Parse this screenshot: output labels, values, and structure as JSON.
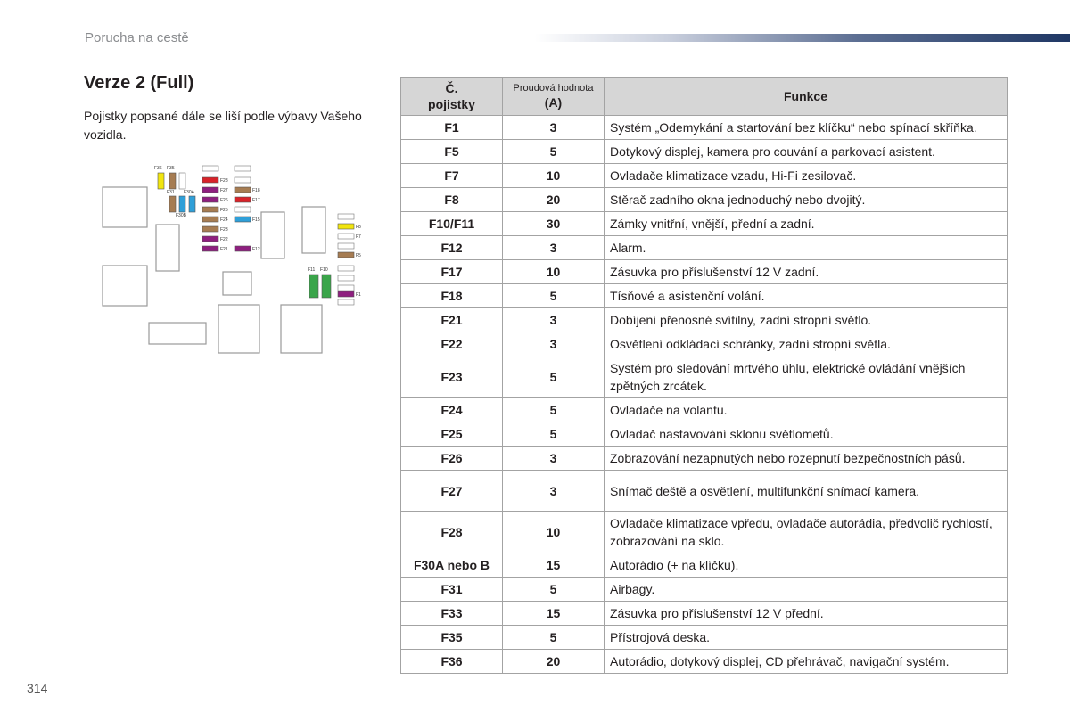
{
  "header": {
    "title": "Porucha na cestě"
  },
  "section": {
    "title": "Verze 2 (Full)",
    "intro": "Pojistky popsané dále se liší podle výbavy Vašeho vozidla."
  },
  "page_number": "314",
  "diagram": {
    "labels": {
      "F36": "F36",
      "F35": "F35",
      "F31": "F31",
      "F30A": "F30A",
      "F30B": "F30B",
      "F28": "F28",
      "F27": "F27",
      "F26": "F26",
      "F25": "F25",
      "F24": "F24",
      "F23": "F23",
      "F22": "F22",
      "F21": "F21",
      "F18": "F18",
      "F17": "F17",
      "F15": "F15",
      "F12": "F12",
      "F8": "F8",
      "F7": "F7",
      "F5": "F5",
      "F11": "F11",
      "F10": "F10",
      "F1": "F1"
    },
    "colors": {
      "yellow": "#f1e50f",
      "brown": "#a67c52",
      "blue": "#2f9fd8",
      "purple": "#8e1f7f",
      "red": "#d8232a",
      "green": "#3aa54a"
    }
  },
  "table": {
    "headers": {
      "col1_line1": "Č.",
      "col1_line2": "pojistky",
      "col2_line1": "Proudová hodnota",
      "col2_line2": "(A)",
      "col3": "Funkce"
    },
    "rows": [
      {
        "fuse": "F1",
        "amps": "3",
        "function": "Systém „Odemykání a startování bez klíčku“ nebo spínací skříňka."
      },
      {
        "fuse": "F5",
        "amps": "5",
        "function": "Dotykový displej, kamera pro couvání a parkovací asistent."
      },
      {
        "fuse": "F7",
        "amps": "10",
        "function": "Ovladače klimatizace vzadu, Hi-Fi zesilovač."
      },
      {
        "fuse": "F8",
        "amps": "20",
        "function": "Stěrač zadního okna jednoduchý nebo dvojitý."
      },
      {
        "fuse": "F10/F11",
        "amps": "30",
        "function": "Zámky vnitřní, vnější, přední a zadní."
      },
      {
        "fuse": "F12",
        "amps": "3",
        "function": "Alarm."
      },
      {
        "fuse": "F17",
        "amps": "10",
        "function": "Zásuvka pro příslušenství 12 V zadní."
      },
      {
        "fuse": "F18",
        "amps": "5",
        "function": "Tísňové a asistenční volání."
      },
      {
        "fuse": "F21",
        "amps": "3",
        "function": "Dobíjení přenosné svítilny, zadní stropní světlo."
      },
      {
        "fuse": "F22",
        "amps": "3",
        "function": "Osvětlení odkládací schránky, zadní stropní světla."
      },
      {
        "fuse": "F23",
        "amps": "5",
        "function": "Systém pro sledování mrtvého úhlu, elektrické ovládání vnějších zpětných zrcátek."
      },
      {
        "fuse": "F24",
        "amps": "5",
        "function": "Ovladače na volantu."
      },
      {
        "fuse": "F25",
        "amps": "5",
        "function": "Ovladač nastavování sklonu světlometů."
      },
      {
        "fuse": "F26",
        "amps": "3",
        "function": "Zobrazování nezapnutých nebo rozepnutí bezpečnostních pásů."
      },
      {
        "fuse": "F27",
        "amps": "3",
        "function": "Snímač deště a osvětlení, multifunkční snímací kamera."
      },
      {
        "fuse": "F28",
        "amps": "10",
        "function": "Ovladače klimatizace vpředu, ovladače autorádia, předvolič rychlostí, zobrazování na sklo."
      },
      {
        "fuse": "F30A nebo B",
        "amps": "15",
        "function": "Autorádio (+ na klíčku)."
      },
      {
        "fuse": "F31",
        "amps": "5",
        "function": "Airbagy."
      },
      {
        "fuse": "F33",
        "amps": "15",
        "function": "Zásuvka pro příslušenství 12 V přední."
      },
      {
        "fuse": "F35",
        "amps": "5",
        "function": "Přístrojová deska."
      },
      {
        "fuse": "F36",
        "amps": "20",
        "function": "Autorádio, dotykový displej, CD přehrávač, navigační systém."
      }
    ]
  }
}
